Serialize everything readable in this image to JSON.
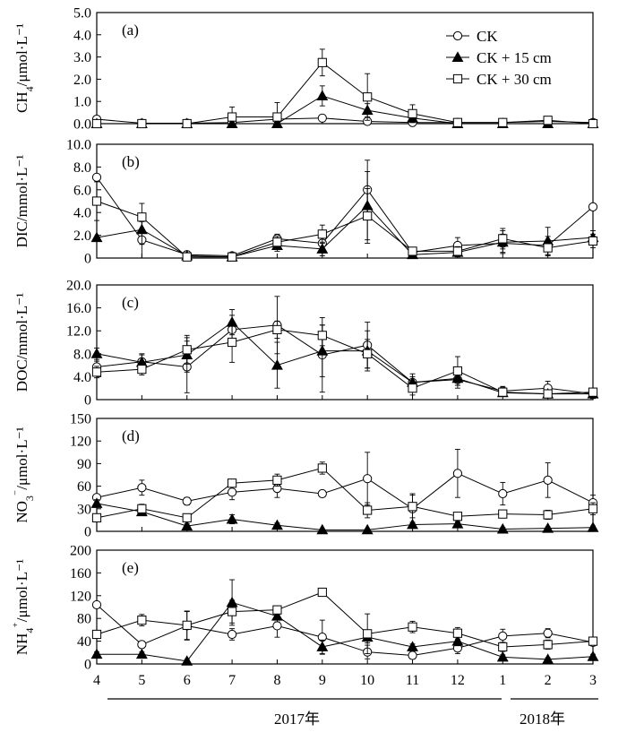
{
  "chart_data": [
    {
      "id": "a",
      "type": "line",
      "panel_label": "(a)",
      "ylabel": "CH4/μmol·L⁻¹",
      "ylim": [
        0,
        5
      ],
      "yticks": [
        "0.0",
        "1.0",
        "2.0",
        "3.0",
        "4.0",
        "5.0"
      ],
      "x": [
        4,
        5,
        6,
        7,
        8,
        9,
        10,
        11,
        12,
        1,
        2,
        3
      ],
      "series": [
        {
          "name": "CK",
          "marker": "circle",
          "values": [
            0.2,
            0.02,
            0.02,
            0.05,
            0.2,
            0.25,
            0.1,
            0.05,
            0.05,
            0.05,
            0.1,
            0.05
          ],
          "err": [
            0.15,
            0.02,
            0.02,
            0.05,
            0.1,
            0.1,
            0.05,
            0.05,
            0.05,
            0.05,
            0.05,
            0.05
          ]
        },
        {
          "name": "CK + 15 cm",
          "marker": "triangle",
          "values": [
            0.0,
            0.0,
            0.0,
            0.0,
            0.0,
            1.25,
            0.6,
            0.25,
            0.0,
            0.0,
            0.0,
            0.0
          ],
          "err": [
            0.02,
            0.02,
            0.02,
            0.02,
            0.05,
            0.45,
            0.3,
            0.2,
            0.05,
            0.05,
            0.05,
            0.05
          ]
        },
        {
          "name": "CK + 30 cm",
          "marker": "square",
          "values": [
            0.0,
            0.0,
            0.0,
            0.3,
            0.3,
            2.75,
            1.2,
            0.45,
            0.05,
            0.05,
            0.15,
            0.0
          ],
          "err": [
            0.05,
            0.05,
            0.05,
            0.45,
            0.65,
            0.6,
            1.05,
            0.4,
            0.1,
            0.1,
            0.15,
            0.05
          ]
        }
      ],
      "legend": {
        "position": "top-right",
        "entries": [
          "CK",
          "CK + 15 cm",
          "CK + 30 cm"
        ]
      }
    },
    {
      "id": "b",
      "type": "line",
      "panel_label": "(b)",
      "ylabel": "DIC/mmol·L⁻¹",
      "ylim": [
        0,
        10
      ],
      "yticks": [
        "0",
        "2.0",
        "4.0",
        "6.0",
        "8.0",
        "10.0"
      ],
      "x": [
        4,
        5,
        6,
        7,
        8,
        9,
        10,
        11,
        12,
        1,
        2,
        3
      ],
      "series": [
        {
          "name": "CK",
          "marker": "circle",
          "values": [
            7.1,
            1.6,
            0.3,
            0.2,
            1.7,
            1.3,
            6.0,
            0.5,
            1.1,
            1.3,
            1.1,
            4.5
          ],
          "err": [
            0,
            1.6,
            0.3,
            0.1,
            0.4,
            0.6,
            2.6,
            0.3,
            0.7,
            0.8,
            0.8,
            0
          ]
        },
        {
          "name": "CK + 15 cm",
          "marker": "triangle",
          "values": [
            1.8,
            2.5,
            0.2,
            0.1,
            1.1,
            0.8,
            4.6,
            0.3,
            0.5,
            1.4,
            1.5,
            1.8
          ],
          "err": [
            0,
            1.3,
            0.2,
            0.1,
            0.5,
            0.6,
            3.0,
            0.2,
            0.4,
            1.0,
            1.2,
            0.6
          ]
        },
        {
          "name": "CK + 30 cm",
          "marker": "square",
          "values": [
            5.0,
            3.6,
            0.1,
            0.1,
            1.4,
            2.1,
            3.7,
            0.6,
            0.6,
            1.7,
            0.9,
            1.5
          ],
          "err": [
            1.7,
            1.2,
            0.1,
            0.05,
            0.5,
            0.8,
            2.4,
            0.3,
            0.4,
            0.9,
            0.7,
            0.6
          ]
        }
      ]
    },
    {
      "id": "c",
      "type": "line",
      "panel_label": "(c)",
      "ylabel": "DOC/mmol·L⁻¹",
      "ylim": [
        0,
        20
      ],
      "yticks": [
        "0",
        "4.0",
        "8.0",
        "12.0",
        "16.0",
        "20.0"
      ],
      "x": [
        4,
        5,
        6,
        7,
        8,
        9,
        10,
        11,
        12,
        1,
        2,
        3
      ],
      "series": [
        {
          "name": "CK",
          "marker": "circle",
          "values": [
            5.7,
            6.6,
            5.7,
            12.2,
            13.0,
            7.8,
            9.5,
            3.0,
            3.5,
            1.5,
            2.0,
            1.0
          ],
          "err": [
            1.0,
            1.2,
            4.5,
            2.5,
            5.0,
            6.5,
            4.0,
            1.5,
            1.5,
            0.8,
            1.2,
            0.8
          ]
        },
        {
          "name": "CK + 15 cm",
          "marker": "triangle",
          "values": [
            8.0,
            6.5,
            7.8,
            13.5,
            6.0,
            8.5,
            8.5,
            3.0,
            3.7,
            1.2,
            1.0,
            1.0
          ],
          "err": [
            1.0,
            1.5,
            3.0,
            2.2,
            4.0,
            4.5,
            3.5,
            1.0,
            1.2,
            0.5,
            0.6,
            0.5
          ]
        },
        {
          "name": "CK + 30 cm",
          "marker": "square",
          "values": [
            4.8,
            5.3,
            8.7,
            10.0,
            12.2,
            11.2,
            8.0,
            2.0,
            5.0,
            1.3,
            1.0,
            1.3
          ],
          "err": [
            1.0,
            1.0,
            2.5,
            3.5,
            1.5,
            1.8,
            2.5,
            1.2,
            2.5,
            0.6,
            0.6,
            0.6
          ]
        }
      ]
    },
    {
      "id": "d",
      "type": "line",
      "panel_label": "(d)",
      "ylabel": "NO3⁻/μmol·L⁻¹",
      "ylim": [
        0,
        150
      ],
      "yticks": [
        "0",
        "30",
        "60",
        "90",
        "120",
        "150"
      ],
      "x": [
        4,
        5,
        6,
        7,
        8,
        9,
        10,
        11,
        12,
        1,
        2,
        3
      ],
      "series": [
        {
          "name": "CK",
          "marker": "circle",
          "values": [
            45,
            58,
            40,
            52,
            57,
            50,
            70,
            30,
            77,
            50,
            68,
            38
          ],
          "err": [
            3,
            10,
            5,
            10,
            12,
            3,
            35,
            20,
            32,
            15,
            23,
            10
          ]
        },
        {
          "name": "CK + 15 cm",
          "marker": "triangle",
          "values": [
            37,
            26,
            7,
            16,
            8,
            2,
            2,
            9,
            10,
            3,
            4,
            5
          ],
          "err": [
            5,
            5,
            3,
            6,
            3,
            1,
            1,
            3,
            3,
            2,
            2,
            2
          ]
        },
        {
          "name": "CK + 30 cm",
          "marker": "square",
          "values": [
            18,
            30,
            18,
            64,
            68,
            84,
            28,
            33,
            20,
            23,
            22,
            30
          ],
          "err": [
            4,
            6,
            4,
            4,
            8,
            8,
            10,
            15,
            4,
            5,
            6,
            8
          ]
        }
      ]
    },
    {
      "id": "e",
      "type": "line",
      "panel_label": "(e)",
      "ylabel": "NH4⁺/μmol·L⁻¹",
      "ylim": [
        0,
        200
      ],
      "yticks": [
        "0",
        "40",
        "80",
        "120",
        "160",
        "200"
      ],
      "x": [
        4,
        5,
        6,
        7,
        8,
        9,
        10,
        11,
        12,
        1,
        2,
        3
      ],
      "xticks": [
        "4",
        "5",
        "6",
        "7",
        "8",
        "9",
        "10",
        "11",
        "12",
        "1",
        "2",
        "3"
      ],
      "series": [
        {
          "name": "CK",
          "marker": "circle",
          "values": [
            104,
            34,
            67,
            52,
            67,
            47,
            21,
            15,
            28,
            49,
            54,
            38
          ],
          "err": [
            4,
            6,
            25,
            10,
            20,
            30,
            12,
            6,
            10,
            12,
            8,
            6
          ]
        },
        {
          "name": "CK + 15 cm",
          "marker": "triangle",
          "values": [
            17,
            17,
            5,
            108,
            84,
            30,
            47,
            30,
            40,
            12,
            8,
            13
          ],
          "err": [
            4,
            4,
            3,
            40,
            10,
            12,
            10,
            5,
            8,
            4,
            3,
            4
          ]
        },
        {
          "name": "CK + 30 cm",
          "marker": "square",
          "values": [
            52,
            77,
            68,
            92,
            95,
            126,
            53,
            65,
            54,
            30,
            34,
            40
          ],
          "err": [
            6,
            10,
            25,
            20,
            6,
            4,
            35,
            10,
            10,
            8,
            8,
            5
          ]
        }
      ]
    }
  ],
  "year_labels": {
    "y2017": "2017年",
    "y2018": "2018年"
  }
}
